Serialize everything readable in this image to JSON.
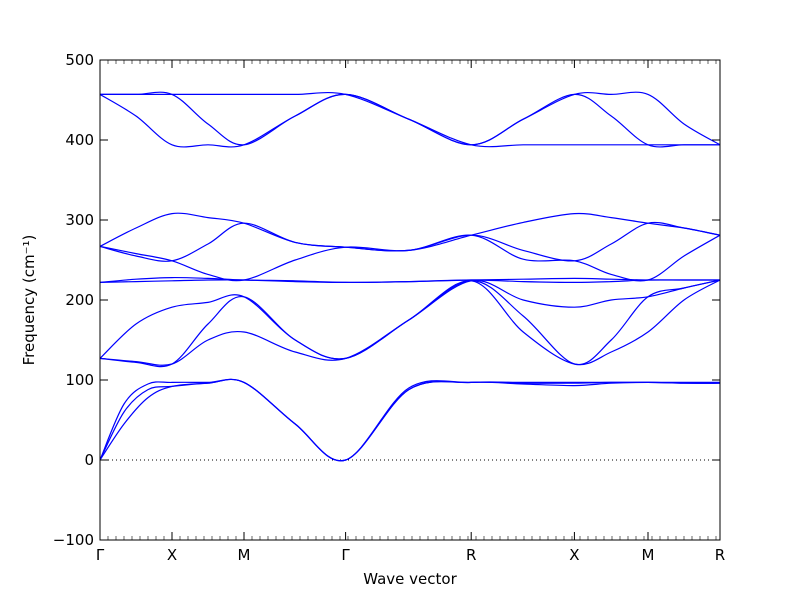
{
  "chart_data": {
    "type": "line",
    "title": "",
    "xlabel": "Wave vector",
    "ylabel": "Frequency (cm⁻¹)",
    "ylim": [
      -100,
      500
    ],
    "yticks": [
      -100,
      0,
      100,
      200,
      300,
      400,
      500
    ],
    "ytick_labels": [
      "−100",
      "0",
      "100",
      "200",
      "300",
      "400",
      "500"
    ],
    "xlim": [
      0,
      7.75
    ],
    "xticks": [
      0,
      0.9,
      1.8,
      3.07,
      4.64,
      5.93,
      6.85,
      7.75
    ],
    "xtick_labels": [
      "Γ",
      "X",
      "M",
      "Γ",
      "R",
      "X",
      "M",
      "R"
    ],
    "zero_line": true,
    "grid": false,
    "legend": "none",
    "line_color": "#0000ff",
    "series": [
      {
        "x": [
          0,
          0.3,
          0.6,
          0.9,
          1.35,
          1.8,
          2.44,
          3.07,
          3.86,
          4.64,
          5.29,
          5.93,
          6.39,
          6.85,
          7.3,
          7.75
        ],
        "values": [
          0,
          60,
          88,
          92,
          96,
          97,
          45,
          0,
          88,
          97,
          95,
          93,
          96,
          97,
          96,
          96
        ]
      },
      {
        "x": [
          0,
          0.3,
          0.6,
          0.9,
          1.35,
          1.8,
          2.44,
          3.07,
          3.86,
          4.64,
          5.29,
          5.93,
          6.39,
          6.85,
          7.3,
          7.75
        ],
        "values": [
          0,
          45,
          78,
          92,
          96,
          97,
          45,
          0,
          88,
          97,
          96,
          96,
          97,
          97,
          96,
          96
        ]
      },
      {
        "x": [
          0,
          0.3,
          0.6,
          0.9,
          1.35,
          1.8,
          2.44,
          3.07,
          3.86,
          4.64,
          5.29,
          5.93,
          6.39,
          6.85,
          7.3,
          7.75
        ],
        "values": [
          0,
          70,
          95,
          97,
          97,
          97,
          45,
          0,
          90,
          97,
          97,
          97,
          97,
          97,
          97,
          97
        ]
      },
      {
        "x": [
          0,
          0.45,
          0.9,
          1.35,
          1.8,
          2.44,
          3.07,
          3.86,
          4.64,
          5.29,
          5.93,
          6.39,
          6.85,
          7.3,
          7.75
        ],
        "values": [
          127,
          123,
          120,
          150,
          160,
          135,
          127,
          175,
          224,
          160,
          120,
          135,
          160,
          200,
          225
        ]
      },
      {
        "x": [
          0,
          0.45,
          0.9,
          1.35,
          1.8,
          2.44,
          3.07,
          3.86,
          4.64,
          5.29,
          5.93,
          6.39,
          6.85,
          7.3,
          7.75
        ],
        "values": [
          127,
          122,
          120,
          170,
          204,
          150,
          127,
          175,
          224,
          180,
          120,
          150,
          204,
          215,
          225
        ]
      },
      {
        "x": [
          0,
          0.45,
          0.9,
          1.35,
          1.8,
          2.44,
          3.07,
          3.86,
          4.64,
          5.29,
          5.93,
          6.39,
          6.85,
          7.3,
          7.75
        ],
        "values": [
          127,
          170,
          191,
          197,
          204,
          150,
          127,
          175,
          224,
          200,
          191,
          200,
          204,
          215,
          225
        ]
      },
      {
        "x": [
          0,
          0.45,
          0.9,
          1.35,
          1.8,
          2.44,
          3.07,
          3.86,
          4.64,
          5.29,
          5.93,
          6.39,
          6.85,
          7.3,
          7.75
        ],
        "values": [
          222,
          223,
          224,
          225,
          225,
          223,
          222,
          223,
          225,
          223,
          222,
          223,
          225,
          225,
          225
        ]
      },
      {
        "x": [
          0,
          0.45,
          0.9,
          1.35,
          1.8,
          2.44,
          3.07,
          3.86,
          4.64,
          5.29,
          5.93,
          6.39,
          6.85,
          7.3,
          7.75
        ],
        "values": [
          222,
          226,
          228,
          227,
          225,
          224,
          222,
          223,
          225,
          226,
          227,
          226,
          225,
          225,
          225
        ]
      },
      {
        "x": [
          0,
          0.45,
          0.9,
          1.35,
          1.8,
          2.44,
          3.07,
          3.86,
          4.64,
          5.29,
          5.93,
          6.39,
          6.85,
          7.3,
          7.75
        ],
        "values": [
          267,
          258,
          249,
          232,
          225,
          250,
          266,
          262,
          281,
          251,
          249,
          232,
          225,
          255,
          281
        ]
      },
      {
        "x": [
          0,
          0.45,
          0.9,
          1.35,
          1.8,
          2.44,
          3.07,
          3.86,
          4.64,
          5.29,
          5.93,
          6.39,
          6.85,
          7.3,
          7.75
        ],
        "values": [
          267,
          255,
          249,
          270,
          296,
          272,
          266,
          262,
          281,
          262,
          249,
          270,
          296,
          290,
          281
        ]
      },
      {
        "x": [
          0,
          0.45,
          0.9,
          1.35,
          1.8,
          2.44,
          3.07,
          3.86,
          4.64,
          5.29,
          5.93,
          6.39,
          6.85,
          7.3,
          7.75
        ],
        "values": [
          267,
          290,
          308,
          303,
          296,
          272,
          266,
          262,
          281,
          297,
          308,
          303,
          296,
          290,
          281
        ]
      },
      {
        "x": [
          0,
          0.45,
          0.9,
          1.35,
          1.8,
          2.44,
          3.07,
          3.86,
          4.64,
          5.29,
          5.93,
          6.39,
          6.85,
          7.3,
          7.75
        ],
        "values": [
          457,
          457,
          457,
          420,
          394,
          430,
          457,
          426,
          394,
          426,
          457,
          457,
          457,
          420,
          394
        ]
      },
      {
        "x": [
          0,
          0.45,
          0.9,
          1.35,
          1.8,
          2.44,
          3.07,
          3.86,
          4.64,
          5.29,
          5.93,
          6.39,
          6.85,
          7.3,
          7.75
        ],
        "values": [
          457,
          430,
          394,
          394,
          394,
          430,
          457,
          426,
          394,
          394,
          394,
          394,
          394,
          394,
          394
        ]
      },
      {
        "x": [
          0,
          0.45,
          0.9,
          1.35,
          1.8,
          2.44,
          3.07,
          3.86,
          4.64,
          5.29,
          5.93,
          6.39,
          6.85,
          7.3,
          7.75
        ],
        "values": [
          457,
          457,
          457,
          457,
          457,
          457,
          457,
          426,
          394,
          426,
          457,
          430,
          394,
          394,
          394
        ]
      }
    ]
  }
}
